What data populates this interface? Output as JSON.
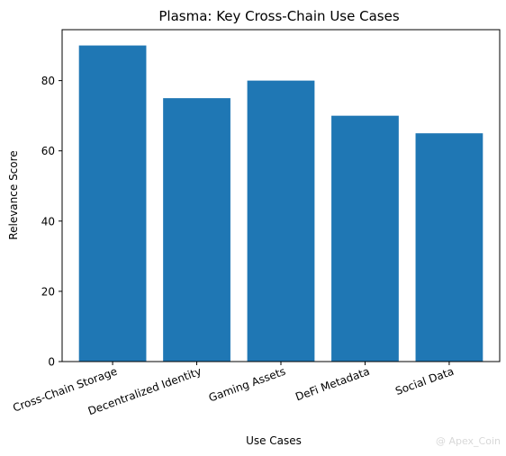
{
  "chart_data": {
    "type": "bar",
    "title": "Plasma: Key Cross-Chain Use Cases",
    "xlabel": "Use Cases",
    "ylabel": "Relevance Score",
    "categories": [
      "Cross-Chain Storage",
      "Decentralized Identity",
      "Gaming Assets",
      "DeFi Metadata",
      "Social Data"
    ],
    "values": [
      90,
      75,
      80,
      70,
      65
    ],
    "ylim": [
      0,
      94.5
    ],
    "yticks": [
      0,
      20,
      40,
      60,
      80
    ],
    "bar_color": "#1f77b4",
    "grid": false,
    "legend": "none"
  },
  "watermark": "@ Apex_Coin"
}
